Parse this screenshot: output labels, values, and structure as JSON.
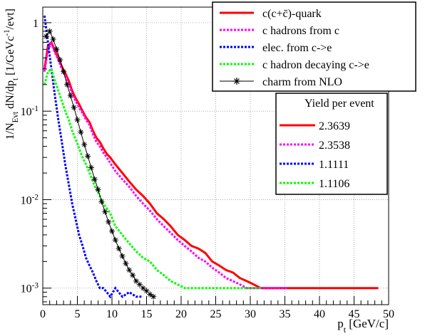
{
  "chart_data": {
    "type": "line",
    "xlabel": "p_t [GeV/c]",
    "ylabel": "1/N_Evt dN/dp_t [1/GeVc^-1/evt]",
    "xlim": [
      0,
      50
    ],
    "ylim": [
      0.00065,
      1.5
    ],
    "yscale": "log",
    "grid": true,
    "x_ticks": [
      0,
      5,
      10,
      15,
      20,
      25,
      30,
      35,
      40,
      45,
      50
    ],
    "y_ticks": [
      {
        "value": 1,
        "label": "1"
      },
      {
        "value": 0.1,
        "label": "10^-1"
      },
      {
        "value": 0.01,
        "label": "10^-2"
      },
      {
        "value": 0.001,
        "label": "10^-3"
      }
    ],
    "legend": {
      "placement": "top-right",
      "entries": [
        {
          "label": "c(c+c̄)-quark",
          "color": "#ff0000",
          "style": "solid"
        },
        {
          "label": "c hadrons from c",
          "color": "#ff00ff",
          "style": "dotted"
        },
        {
          "label": "elec. from c->e",
          "color": "#0000ff",
          "style": "dotted"
        },
        {
          "label": "c hadron decaying c->e",
          "color": "#00ff00",
          "style": "dotted"
        },
        {
          "label": "charm from NLO",
          "color": "#000000",
          "style": "star"
        }
      ]
    },
    "yield_box": {
      "title": "Yield per event",
      "rows": [
        {
          "value": "2.3639",
          "color": "#ff0000",
          "style": "solid"
        },
        {
          "value": "2.3538",
          "color": "#ff00ff",
          "style": "dotted"
        },
        {
          "value": "1.1111",
          "color": "#0000ff",
          "style": "dotted"
        },
        {
          "value": "1.1106",
          "color": "#00ff00",
          "style": "dotted"
        }
      ]
    },
    "series": [
      {
        "color": "#ff0000",
        "style": "solid",
        "x": [
          0.25,
          0.75,
          1.25,
          1.75,
          2.25,
          2.75,
          3.25,
          3.75,
          4.25,
          4.75,
          5.25,
          5.75,
          6.25,
          6.75,
          7.25,
          7.75,
          8.25,
          8.75,
          9.25,
          9.75,
          10.5,
          11.5,
          12.5,
          13.5,
          14.5,
          15.5,
          16.5,
          17.5,
          18.5,
          19.5,
          20.5,
          21.5,
          22.5,
          23.5,
          24.5,
          25.5,
          26.5,
          27.5,
          28.5,
          29.5,
          30.5,
          31.5,
          32.5,
          33.5,
          34.5,
          35.5,
          36.5,
          37.5,
          38.5,
          39.5,
          40.5,
          41.5,
          42.5,
          43.5,
          44.5,
          45.5,
          46.5,
          47.5,
          48.5
        ],
        "y": [
          0.3,
          0.55,
          0.6,
          0.48,
          0.4,
          0.32,
          0.27,
          0.22,
          0.17,
          0.14,
          0.12,
          0.1,
          0.085,
          0.075,
          0.06,
          0.05,
          0.045,
          0.038,
          0.033,
          0.03,
          0.025,
          0.02,
          0.016,
          0.013,
          0.011,
          0.009,
          0.007,
          0.006,
          0.005,
          0.004,
          0.0035,
          0.003,
          0.0028,
          0.0025,
          0.002,
          0.0018,
          0.0016,
          0.0015,
          0.0013,
          0.0012,
          0.0011,
          0.001,
          0.001,
          0.001,
          0.001,
          0.001,
          0.001,
          0.001,
          0.001,
          0.001,
          0.001,
          0.001,
          0.001,
          0.001,
          0.001,
          0.001,
          0.001,
          0.001,
          0.001
        ]
      },
      {
        "color": "#ff00ff",
        "style": "dotted",
        "x": [
          0.25,
          0.75,
          1.25,
          1.75,
          2.25,
          2.75,
          3.25,
          3.75,
          4.25,
          4.75,
          5.25,
          5.75,
          6.25,
          6.75,
          7.25,
          7.75,
          8.25,
          8.75,
          9.25,
          9.75,
          10.5,
          11.5,
          12.5,
          13.5,
          14.5,
          15.5,
          16.5,
          17.5,
          18.5,
          19.5,
          20.5,
          21.5,
          22.5,
          23.5,
          24.5,
          25.5,
          26.5,
          27.5,
          28.5,
          29.5,
          30.5,
          31.5,
          32.5,
          33.5,
          34.5,
          35.5
        ],
        "y": [
          0.28,
          0.5,
          0.58,
          0.46,
          0.38,
          0.3,
          0.25,
          0.2,
          0.16,
          0.13,
          0.11,
          0.095,
          0.08,
          0.07,
          0.055,
          0.045,
          0.04,
          0.034,
          0.03,
          0.026,
          0.021,
          0.017,
          0.014,
          0.011,
          0.009,
          0.0075,
          0.006,
          0.005,
          0.0042,
          0.0035,
          0.003,
          0.0026,
          0.0022,
          0.002,
          0.0017,
          0.0015,
          0.0013,
          0.0012,
          0.0011,
          0.001,
          0.001,
          0.001,
          0.001,
          0.001,
          0.001,
          0.001
        ]
      },
      {
        "color": "#0000ff",
        "style": "dotted",
        "x": [
          0.25,
          0.75,
          1.25,
          1.75,
          2.25,
          2.75,
          3.25,
          3.75,
          4.25,
          4.75,
          5.25,
          5.75,
          6.25,
          6.75,
          7.25,
          7.75,
          8.25,
          8.75,
          9.25,
          9.75,
          10.5,
          11.5,
          12.5,
          13.5,
          14.5
        ],
        "y": [
          1.2,
          0.6,
          0.3,
          0.15,
          0.08,
          0.045,
          0.025,
          0.015,
          0.009,
          0.006,
          0.004,
          0.003,
          0.0022,
          0.0018,
          0.0015,
          0.0012,
          0.001,
          0.001,
          0.0009,
          0.0008,
          0.001,
          0.0008,
          0.0009,
          0.0008,
          0.0008
        ]
      },
      {
        "color": "#00ff00",
        "style": "dotted",
        "x": [
          0.25,
          0.75,
          1.25,
          1.75,
          2.25,
          2.75,
          3.25,
          3.75,
          4.25,
          4.75,
          5.25,
          5.75,
          6.25,
          6.75,
          7.25,
          7.75,
          8.25,
          8.75,
          9.25,
          9.75,
          10.5,
          11.5,
          12.5,
          13.5,
          14.5,
          15.5,
          16.5,
          17.5,
          18.5,
          19.5,
          20.5,
          21.5,
          22.5,
          23.5,
          24.5,
          25.5,
          26.5,
          27.5,
          28.5,
          29.5,
          30.5,
          31.5
        ],
        "y": [
          0.2,
          0.28,
          0.3,
          0.22,
          0.17,
          0.13,
          0.1,
          0.08,
          0.06,
          0.048,
          0.038,
          0.03,
          0.025,
          0.02,
          0.016,
          0.013,
          0.011,
          0.009,
          0.008,
          0.007,
          0.005,
          0.004,
          0.0032,
          0.0026,
          0.0022,
          0.002,
          0.0016,
          0.0014,
          0.0012,
          0.0011,
          0.001,
          0.001,
          0.001,
          0.001,
          0.001,
          0.001,
          0.001,
          0.001,
          0.001,
          0.001,
          0.001,
          0.001
        ]
      },
      {
        "color": "#000000",
        "style": "star",
        "x": [
          0.5,
          1,
          1.5,
          2,
          2.5,
          3,
          3.5,
          4,
          4.5,
          5,
          5.5,
          6,
          6.5,
          7,
          7.5,
          8,
          8.5,
          9,
          9.5,
          10,
          10.5,
          11,
          11.5,
          12,
          12.5,
          13,
          13.5,
          14,
          14.5,
          15,
          15.5,
          16
        ],
        "y": [
          0.7,
          0.8,
          0.65,
          0.5,
          0.38,
          0.28,
          0.2,
          0.15,
          0.11,
          0.08,
          0.058,
          0.042,
          0.031,
          0.023,
          0.017,
          0.013,
          0.0095,
          0.0073,
          0.0056,
          0.0044,
          0.0035,
          0.0028,
          0.0023,
          0.0019,
          0.0016,
          0.0014,
          0.0012,
          0.0011,
          0.001,
          0.00093,
          0.00085,
          0.0008
        ]
      }
    ]
  }
}
